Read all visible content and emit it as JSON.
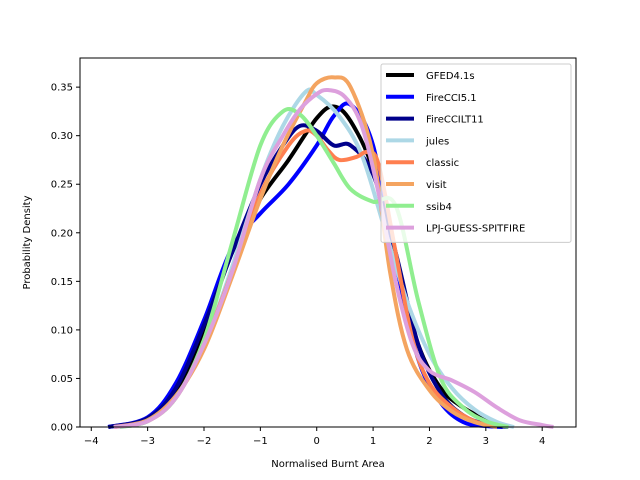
{
  "chart_data": {
    "type": "line",
    "xlabel": "Normalised Burnt Area",
    "ylabel": "Probability Density",
    "xlim": [
      -4.2,
      4.6
    ],
    "ylim": [
      0.0,
      0.38
    ],
    "xticks": [
      -4,
      -3,
      -2,
      -1,
      0,
      1,
      2,
      3,
      4
    ],
    "xtick_labels": [
      "−4",
      "−3",
      "−2",
      "−1",
      "0",
      "1",
      "2",
      "3",
      "4"
    ],
    "yticks": [
      0.0,
      0.05,
      0.1,
      0.15,
      0.2,
      0.25,
      0.3,
      0.35
    ],
    "ytick_labels": [
      "0.00",
      "0.05",
      "0.10",
      "0.15",
      "0.20",
      "0.25",
      "0.30",
      "0.35"
    ],
    "grid": false,
    "legend_position": "top-right",
    "series": [
      {
        "name": "GFED4.1s",
        "color": "#000000",
        "x": [
          -3.6,
          -3.0,
          -2.5,
          -2.0,
          -1.5,
          -1.0,
          -0.5,
          0.0,
          0.3,
          0.6,
          1.0,
          1.4,
          1.8,
          2.2,
          2.6,
          3.0,
          3.4
        ],
        "y": [
          0.0,
          0.008,
          0.035,
          0.1,
          0.18,
          0.235,
          0.275,
          0.318,
          0.33,
          0.315,
          0.265,
          0.17,
          0.085,
          0.04,
          0.02,
          0.008,
          0.0
        ]
      },
      {
        "name": "FireCCI5.1",
        "color": "#0000ff",
        "x": [
          -3.7,
          -3.0,
          -2.5,
          -2.0,
          -1.5,
          -1.0,
          -0.5,
          0.0,
          0.3,
          0.6,
          1.0,
          1.4,
          1.8,
          2.2,
          2.6,
          3.0,
          3.3
        ],
        "y": [
          0.0,
          0.01,
          0.045,
          0.11,
          0.185,
          0.22,
          0.25,
          0.29,
          0.32,
          0.332,
          0.29,
          0.17,
          0.07,
          0.025,
          0.005,
          0.001,
          0.0
        ]
      },
      {
        "name": "FireCCILT11",
        "color": "#00008b",
        "x": [
          -3.7,
          -3.0,
          -2.5,
          -2.0,
          -1.5,
          -1.0,
          -0.6,
          -0.3,
          0.0,
          0.3,
          0.6,
          1.0,
          1.4,
          1.8,
          2.2,
          2.6,
          3.0,
          3.4
        ],
        "y": [
          0.0,
          0.009,
          0.04,
          0.105,
          0.18,
          0.25,
          0.29,
          0.31,
          0.305,
          0.29,
          0.29,
          0.26,
          0.18,
          0.085,
          0.035,
          0.012,
          0.003,
          0.0
        ]
      },
      {
        "name": "jules",
        "color": "#add8e6",
        "x": [
          -3.5,
          -3.0,
          -2.5,
          -2.0,
          -1.5,
          -1.0,
          -0.6,
          -0.2,
          0.0,
          0.4,
          0.8,
          1.2,
          1.6,
          2.0,
          2.4,
          2.8,
          3.2,
          3.5
        ],
        "y": [
          0.0,
          0.006,
          0.03,
          0.085,
          0.165,
          0.255,
          0.31,
          0.345,
          0.342,
          0.32,
          0.28,
          0.205,
          0.13,
          0.075,
          0.04,
          0.018,
          0.005,
          0.0
        ]
      },
      {
        "name": "classic",
        "color": "#ff7f50",
        "x": [
          -3.6,
          -3.0,
          -2.5,
          -2.0,
          -1.5,
          -1.0,
          -0.5,
          -0.2,
          0.0,
          0.2,
          0.4,
          0.7,
          0.9,
          1.1,
          1.4,
          1.7,
          2.0,
          2.4,
          2.8,
          3.2
        ],
        "y": [
          0.0,
          0.006,
          0.03,
          0.085,
          0.16,
          0.24,
          0.29,
          0.305,
          0.3,
          0.285,
          0.275,
          0.278,
          0.283,
          0.27,
          0.18,
          0.09,
          0.045,
          0.02,
          0.006,
          0.0
        ]
      },
      {
        "name": "visit",
        "color": "#f4a460",
        "x": [
          -3.6,
          -3.0,
          -2.5,
          -2.0,
          -1.5,
          -1.0,
          -0.6,
          -0.2,
          0.0,
          0.3,
          0.6,
          1.0,
          1.3,
          1.6,
          2.0,
          2.4,
          2.8,
          3.2
        ],
        "y": [
          0.0,
          0.007,
          0.032,
          0.08,
          0.155,
          0.235,
          0.29,
          0.335,
          0.354,
          0.36,
          0.35,
          0.28,
          0.16,
          0.08,
          0.038,
          0.016,
          0.005,
          0.0
        ]
      },
      {
        "name": "ssib4",
        "color": "#90ee90",
        "x": [
          -3.5,
          -3.0,
          -2.5,
          -2.0,
          -1.5,
          -1.0,
          -0.6,
          -0.3,
          0.0,
          0.3,
          0.6,
          1.0,
          1.4,
          1.8,
          2.2,
          2.6,
          3.0,
          3.4
        ],
        "y": [
          0.0,
          0.006,
          0.03,
          0.09,
          0.19,
          0.29,
          0.325,
          0.322,
          0.3,
          0.272,
          0.245,
          0.232,
          0.228,
          0.13,
          0.05,
          0.02,
          0.006,
          0.0
        ]
      },
      {
        "name": "LPJ-GUESS-SPITFIRE",
        "color": "#dda0dd",
        "x": [
          -3.6,
          -3.0,
          -2.5,
          -2.0,
          -1.5,
          -1.0,
          -0.6,
          -0.3,
          0.0,
          0.2,
          0.5,
          0.8,
          1.1,
          1.4,
          1.7,
          2.0,
          2.4,
          2.8,
          3.2,
          3.6,
          4.0,
          4.2
        ],
        "y": [
          0.0,
          0.006,
          0.03,
          0.085,
          0.16,
          0.255,
          0.3,
          0.327,
          0.343,
          0.347,
          0.34,
          0.31,
          0.24,
          0.15,
          0.085,
          0.058,
          0.048,
          0.036,
          0.02,
          0.007,
          0.002,
          0.0
        ]
      }
    ]
  }
}
